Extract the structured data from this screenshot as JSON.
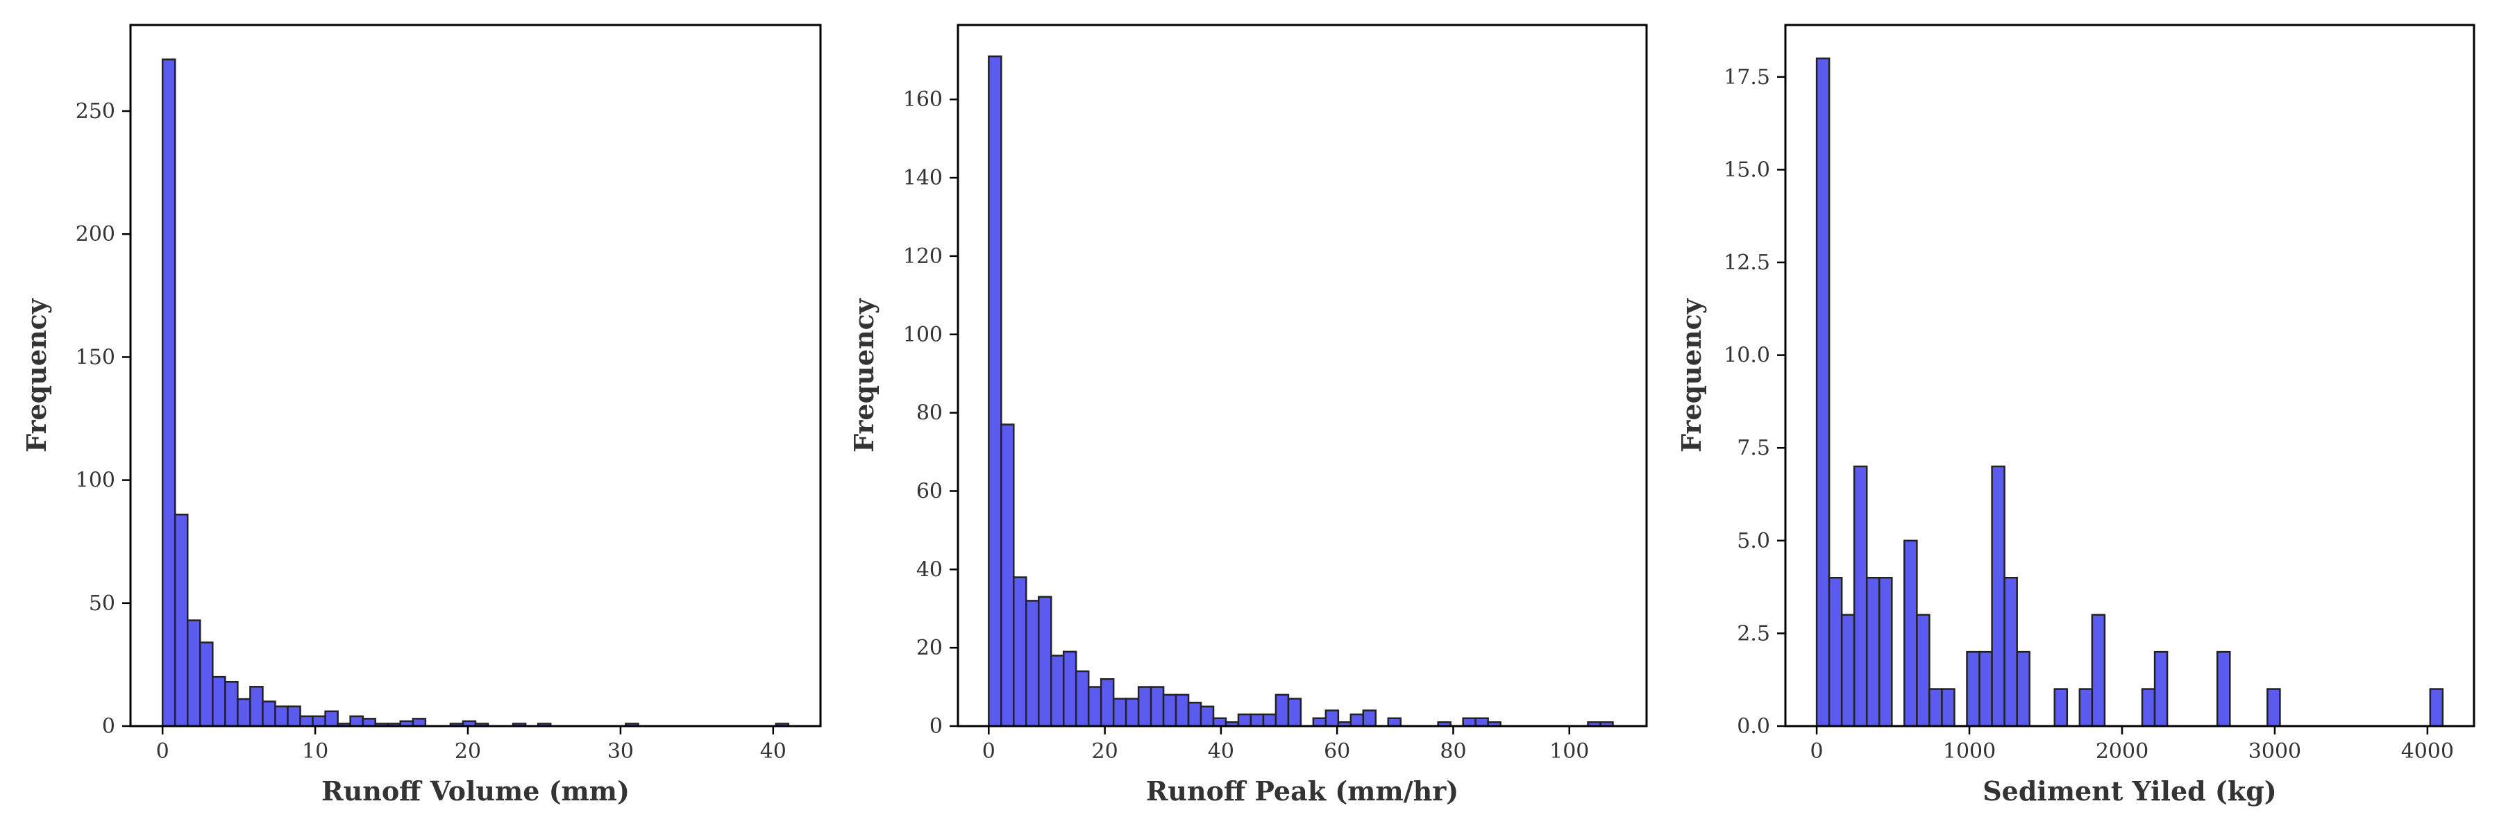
{
  "colors": {
    "bar_fill": "#5b5bf0",
    "bar_edge": "#222222",
    "text": "#333333"
  },
  "chart_data": [
    {
      "type": "bar",
      "xlabel": "Runoff Volume (mm)",
      "ylabel": "Frequency",
      "xlim": [
        -2.1,
        43.1
      ],
      "ylim": [
        0,
        285
      ],
      "xticks": [
        0,
        10,
        20,
        30,
        40
      ],
      "yticks": [
        0,
        50,
        100,
        150,
        200,
        250
      ],
      "bin_start": 0,
      "bin_width": 0.82,
      "values": [
        271,
        86,
        43,
        34,
        20,
        18,
        11,
        16,
        10,
        8,
        8,
        4,
        4,
        6,
        1,
        4,
        3,
        1,
        1,
        2,
        3,
        0,
        0,
        1,
        2,
        1,
        0,
        0,
        1,
        0,
        1,
        0,
        0,
        0,
        0,
        0,
        0,
        1,
        0,
        0,
        0,
        0,
        0,
        0,
        0,
        0,
        0,
        0,
        0,
        1
      ]
    },
    {
      "type": "bar",
      "xlabel": "Runoff Peak (mm/hr)",
      "ylabel": "Frequency",
      "xlim": [
        -5.3,
        113.3
      ],
      "ylim": [
        0,
        179
      ],
      "xticks": [
        0,
        20,
        40,
        60,
        80,
        100
      ],
      "yticks": [
        0,
        20,
        40,
        60,
        80,
        100,
        120,
        140,
        160
      ],
      "bin_start": 0,
      "bin_width": 2.15,
      "values": [
        171,
        77,
        38,
        32,
        33,
        18,
        19,
        14,
        10,
        12,
        7,
        7,
        10,
        10,
        8,
        8,
        6,
        5,
        2,
        1,
        3,
        3,
        3,
        8,
        7,
        0,
        2,
        4,
        1,
        3,
        4,
        0,
        2,
        0,
        0,
        0,
        1,
        0,
        2,
        2,
        1,
        0,
        0,
        0,
        0,
        0,
        0,
        0,
        1,
        1
      ]
    },
    {
      "type": "bar",
      "xlabel": "Sediment Yiled (kg)",
      "ylabel": "Frequency",
      "xlim": [
        -205,
        4305
      ],
      "ylim": [
        0,
        18.9
      ],
      "xticks": [
        0,
        1000,
        2000,
        3000,
        4000
      ],
      "yticks": [
        0.0,
        2.5,
        5.0,
        7.5,
        10.0,
        12.5,
        15.0,
        17.5
      ],
      "ytick_labels": [
        "0.0",
        "2.5",
        "5.0",
        "7.5",
        "10.0",
        "12.5",
        "15.0",
        "17.5"
      ],
      "bin_start": 0,
      "bin_width": 82,
      "values": [
        18,
        4,
        3,
        7,
        4,
        4,
        0,
        5,
        3,
        1,
        1,
        0,
        2,
        2,
        7,
        4,
        2,
        0,
        0,
        1,
        0,
        1,
        3,
        0,
        0,
        0,
        1,
        2,
        0,
        0,
        0,
        0,
        2,
        0,
        0,
        0,
        1,
        0,
        0,
        0,
        0,
        0,
        0,
        0,
        0,
        0,
        0,
        0,
        0,
        1
      ]
    }
  ]
}
